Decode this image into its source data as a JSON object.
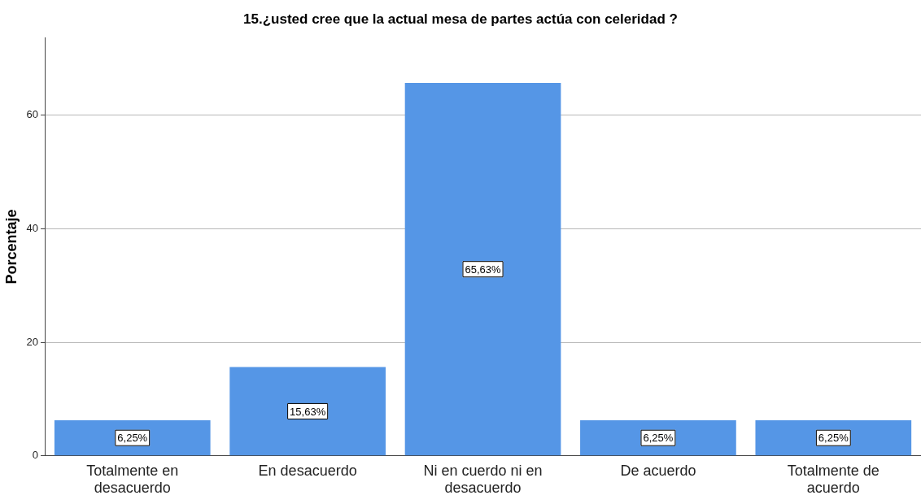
{
  "chart_data": {
    "type": "bar",
    "title": "15.¿usted cree que la actual mesa de partes actúa con celeridad ?",
    "ylabel": "Porcentaje",
    "categories": [
      "Totalmente en desacuerdo",
      "En desacuerdo",
      "Ni en cuerdo ni en desacuerdo",
      "De acuerdo",
      "Totalmente de acuerdo"
    ],
    "values": [
      6.25,
      15.63,
      65.63,
      6.25,
      6.25
    ],
    "value_labels": [
      "6,25%",
      "15,63%",
      "65,63%",
      "6,25%",
      "6,25%"
    ],
    "color": "#5596e6",
    "ylim": [
      0,
      73.6
    ],
    "yticks": [
      0,
      20,
      40,
      60
    ],
    "grid": "y",
    "legend": false
  }
}
